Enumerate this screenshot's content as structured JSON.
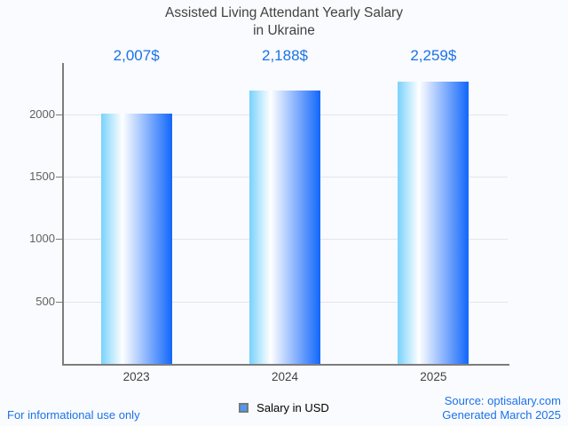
{
  "chart": {
    "title_line1": "Assisted Living Attendant Yearly Salary",
    "title_line2": "in Ukraine"
  },
  "chart_data": {
    "type": "bar",
    "title": "Assisted Living Attendant Yearly Salary in Ukraine",
    "categories": [
      "2023",
      "2024",
      "2025"
    ],
    "series": [
      {
        "name": "Salary in USD",
        "values": [
          2007,
          2188,
          2259
        ]
      }
    ],
    "value_labels": [
      "2,007$",
      "2,188$",
      "2,259$"
    ],
    "yticks": [
      500,
      1000,
      1500,
      2000
    ],
    "ylim": [
      0,
      2400
    ],
    "xlabel": "",
    "ylabel": "",
    "grid": true,
    "legend_position": "bottom"
  },
  "legend": {
    "label": "Salary in USD"
  },
  "footer": {
    "disclaimer": "For informational use only",
    "source": "Source: optisalary.com",
    "generated": "Generated March 2025"
  },
  "colors": {
    "background": "#fafbfe",
    "title_text": "#424242",
    "value_label_text": "#1a73e8",
    "footer_text": "#1a73e8",
    "axis_line": "#7d7d7d",
    "grid_line": "#e2e5e9",
    "y_tick_text": "#616161",
    "x_tick_text": "#424242",
    "bar_gradient_left": "#79d2fb",
    "bar_gradient_mid": "#ffffff",
    "bar_gradient_right": "#1267fb",
    "legend_swatch_fill": "#4f99f0",
    "legend_swatch_border": "#77797c"
  }
}
